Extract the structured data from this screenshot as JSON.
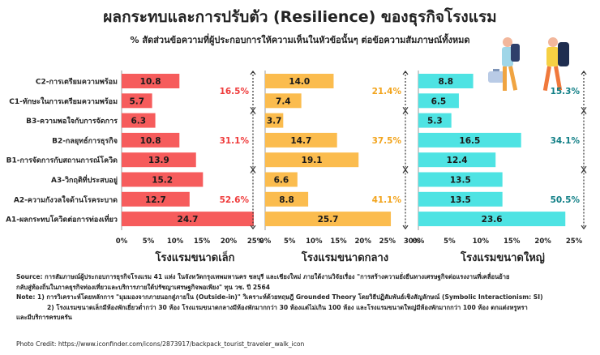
{
  "title": "ผลกระทบและการปรับตัว (Resilience) ของธุรกิจโรงแรม",
  "subtitle": "% สัดส่วนข้อความที่ผู้ประกอบการให้ความเห็นในหัวข้อนั้นๆ ต่อข้อความสัมภาษณ์ทั้งหมด",
  "colors": {
    "small": "#f65c5c",
    "medium": "#fbbc4e",
    "large": "#4ee3e3",
    "small_text": "#ef3b3b",
    "medium_text": "#f2a41d",
    "large_text": "#107f86",
    "divider": "#333333"
  },
  "chart_data": {
    "type": "bar",
    "orientation": "horizontal",
    "categories": [
      "C2-การเตรียมความพร้อม",
      "C1-ทักษะในการเตรียมความพร้อม",
      "B3-ความพอใจกับการจัดการ",
      "B2-กลยุทธ์การธุรกิจ",
      "B1-การจัดการกับสถานการณ์โควิด",
      "A3-วิกฤติที่ประสบอยู่",
      "A2-ความกังวลใจด้านโรคระบาด",
      "A1-ผลกระทบโควิดต่อการท่องเที่ยว"
    ],
    "panels": [
      {
        "name": "โรงแรมขนาดเล็ก",
        "values": [
          10.8,
          5.7,
          6.3,
          10.8,
          13.9,
          15.2,
          12.7,
          24.7
        ],
        "xlim": [
          0,
          25
        ],
        "ticks": [
          "0%",
          "5%",
          "10%",
          "15%",
          "20%",
          "25%"
        ],
        "group_totals": [
          "16.5%",
          "31.1%",
          "52.6%"
        ]
      },
      {
        "name": "โรงแรมขนาดกลาง",
        "values": [
          14.0,
          7.4,
          3.7,
          14.7,
          19.1,
          6.6,
          8.8,
          25.7
        ],
        "xlim": [
          0,
          30
        ],
        "ticks": [
          "0%",
          "5%",
          "10%",
          "15%",
          "20%",
          "25%",
          "30%"
        ],
        "group_totals": [
          "21.4%",
          "37.5%",
          "41.1%"
        ]
      },
      {
        "name": "โรงแรมขนาดใหญ่",
        "values": [
          8.8,
          6.5,
          5.3,
          16.5,
          12.4,
          13.5,
          13.5,
          23.6
        ],
        "xlim": [
          0,
          25
        ],
        "ticks": [
          "0%",
          "5%",
          "10%",
          "15%",
          "20%",
          "25%"
        ],
        "group_totals": [
          "15.3%",
          "34.1%",
          "50.5%"
        ]
      }
    ]
  },
  "notes": {
    "source_line1": "Source: การสัมภาษณ์ผู้ประกอบการธุรกิจโรงแรม 41 แห่ง ในจังหวัดกรุงเทพมหานคร ชลบุรี และเชียงใหม่ ภายใต้งานวิจัยเรื่อง \"การสร้างความยั่งยืนทางเศรษฐกิจต่อแรงงานที่เคลื่อนย้าย",
    "source_line2": "กลับสู่ท้องถิ่นในภาคธุรกิจท่องเที่ยวและบริการภายใต้ปรัชญาเศรษฐกิจพอเพียง\" ทุน วช. ปี 2564",
    "note1": "Note: 1) การวิเคราะห์โดยหลักการ \"มุมมองจากภายนอกสู่ภายใน (Outside-in)\" วิเคราะห์ด้วยทฤษฎี Grounded Theory โดยวิธีปฏิสัมพันธ์เชิงสัญลักษณ์ (Symbolic Interactionism: SI)",
    "note2": "2) โรงแรมขนาดเล็กมีห้องพักเยี่ยวต่ำกว่า 30 ห้อง  โรงแรมขนาดกลางมีห้องพักมากกว่า 30 ห้องแต่ไม่เกิน 100 ห้อง และโรงแรมขนาดใหญ่มีห้องพักมากกว่า 100 ห้อง ตกแต่งหรูหรา",
    "note3": "และมีบริการครบครัน"
  },
  "credit": "Photo Credit: https://www.iconfinder.com/icons/2873917/backpack_tourist_traveler_walk_icon",
  "illustration": "backpack-traveler-icons"
}
